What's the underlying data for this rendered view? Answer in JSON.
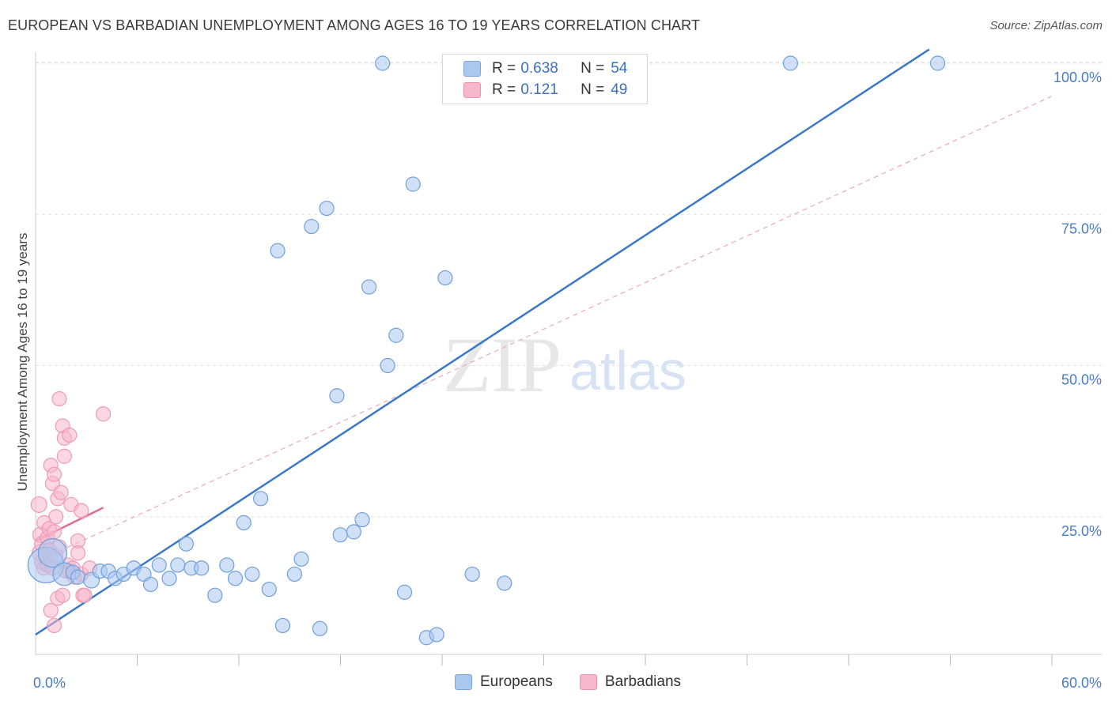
{
  "title": "EUROPEAN VS BARBADIAN UNEMPLOYMENT AMONG AGES 16 TO 19 YEARS CORRELATION CHART",
  "source": "Source: ZipAtlas.com",
  "watermark": {
    "zip": "ZIP",
    "atlas": "atlas"
  },
  "legend": {
    "europeans": {
      "r_label": "R =",
      "r_value": "0.638",
      "n_label": "N =",
      "n_value": "54",
      "color": "#a9c8f0"
    },
    "barbadians": {
      "r_label": "R =",
      "r_value": "0.121",
      "n_label": "N =",
      "n_value": "49",
      "color": "#f6b6cb"
    }
  },
  "bottom_legend": {
    "europeans": "Europeans",
    "barbadians": "Barbadians"
  },
  "chart_data": {
    "type": "scatter",
    "title": "EUROPEAN VS BARBADIAN UNEMPLOYMENT AMONG AGES 16 TO 19 YEARS CORRELATION CHART",
    "xlabel": "",
    "ylabel": "Unemployment Among Ages 16 to 19 years",
    "xlim": [
      0,
      60
    ],
    "ylim": [
      0,
      104
    ],
    "x_tick_labels": [
      "0.0%",
      "60.0%"
    ],
    "y_ticks": [
      25,
      50,
      75,
      100
    ],
    "y_tick_labels": [
      "25.0%",
      "50.0%",
      "75.0%",
      "100.0%"
    ],
    "grid": true,
    "series": [
      {
        "name": "Europeans",
        "color": "#a9c8f0",
        "stroke": "#6f9fdc",
        "trend": {
          "x": [
            0,
            52.8
          ],
          "y": [
            5.5,
            102.3
          ],
          "color": "#3a78c9"
        },
        "points": [
          {
            "x": 0.6,
            "y": 17.0,
            "s": 2.5
          },
          {
            "x": 1.0,
            "y": 19.0,
            "s": 2.0
          },
          {
            "x": 1.7,
            "y": 15.5,
            "s": 1.6
          },
          {
            "x": 2.2,
            "y": 15.8,
            "s": 1.0
          },
          {
            "x": 2.5,
            "y": 15.0,
            "s": 1.0
          },
          {
            "x": 3.3,
            "y": 14.5,
            "s": 1.1
          },
          {
            "x": 3.8,
            "y": 16.0,
            "s": 1.0
          },
          {
            "x": 4.3,
            "y": 16.0,
            "s": 1.0
          },
          {
            "x": 4.7,
            "y": 14.8,
            "s": 1.0
          },
          {
            "x": 5.2,
            "y": 15.5,
            "s": 1.0
          },
          {
            "x": 5.8,
            "y": 16.5,
            "s": 1.0
          },
          {
            "x": 6.4,
            "y": 15.5,
            "s": 1.0
          },
          {
            "x": 6.8,
            "y": 13.8,
            "s": 1.0
          },
          {
            "x": 7.3,
            "y": 17.0,
            "s": 1.0
          },
          {
            "x": 7.9,
            "y": 14.8,
            "s": 1.0
          },
          {
            "x": 8.4,
            "y": 17.0,
            "s": 1.0
          },
          {
            "x": 8.9,
            "y": 20.5,
            "s": 1.0
          },
          {
            "x": 9.2,
            "y": 16.5,
            "s": 1.0
          },
          {
            "x": 9.8,
            "y": 16.5,
            "s": 1.0
          },
          {
            "x": 10.6,
            "y": 12.0,
            "s": 1.0
          },
          {
            "x": 11.3,
            "y": 17.0,
            "s": 1.0
          },
          {
            "x": 11.8,
            "y": 14.8,
            "s": 1.0
          },
          {
            "x": 12.3,
            "y": 24.0,
            "s": 1.0
          },
          {
            "x": 12.8,
            "y": 15.5,
            "s": 1.0
          },
          {
            "x": 13.3,
            "y": 28.0,
            "s": 1.0
          },
          {
            "x": 13.8,
            "y": 13.0,
            "s": 1.0
          },
          {
            "x": 14.3,
            "y": 69.0,
            "s": 1.0
          },
          {
            "x": 14.6,
            "y": 7.0,
            "s": 1.0
          },
          {
            "x": 15.3,
            "y": 15.5,
            "s": 1.0
          },
          {
            "x": 15.7,
            "y": 18.0,
            "s": 1.0
          },
          {
            "x": 16.3,
            "y": 73.0,
            "s": 1.0
          },
          {
            "x": 16.8,
            "y": 6.5,
            "s": 1.0
          },
          {
            "x": 17.2,
            "y": 76.0,
            "s": 1.0
          },
          {
            "x": 17.8,
            "y": 45.0,
            "s": 1.0
          },
          {
            "x": 18.0,
            "y": 22.0,
            "s": 1.0
          },
          {
            "x": 18.8,
            "y": 22.5,
            "s": 1.0
          },
          {
            "x": 19.3,
            "y": 24.5,
            "s": 1.0
          },
          {
            "x": 19.7,
            "y": 63.0,
            "s": 1.0
          },
          {
            "x": 20.5,
            "y": 100.0,
            "s": 1.0
          },
          {
            "x": 20.8,
            "y": 50.0,
            "s": 1.0
          },
          {
            "x": 21.3,
            "y": 55.0,
            "s": 1.0
          },
          {
            "x": 21.8,
            "y": 12.5,
            "s": 1.0
          },
          {
            "x": 22.3,
            "y": 80.0,
            "s": 1.0
          },
          {
            "x": 23.1,
            "y": 5.0,
            "s": 1.0
          },
          {
            "x": 23.7,
            "y": 5.5,
            "s": 1.0
          },
          {
            "x": 24.2,
            "y": 64.5,
            "s": 1.0
          },
          {
            "x": 25.8,
            "y": 15.5,
            "s": 1.0
          },
          {
            "x": 27.7,
            "y": 14.0,
            "s": 1.0
          },
          {
            "x": 44.6,
            "y": 100.0,
            "s": 1.0
          },
          {
            "x": 53.3,
            "y": 100.0,
            "s": 1.0
          }
        ]
      },
      {
        "name": "Barbadians",
        "color": "#f6b6cb",
        "stroke": "#ef9ab7",
        "trend": {
          "x": [
            0,
            4.0
          ],
          "y": [
            21.0,
            26.5
          ],
          "color": "#e06d95"
        },
        "trend_extension": {
          "x": [
            0,
            60
          ],
          "y": [
            17.5,
            94.5
          ],
          "dashed": true,
          "color": "#eba8c0"
        },
        "points": [
          {
            "x": 0.2,
            "y": 27.0,
            "s": 1.1
          },
          {
            "x": 0.3,
            "y": 22.0,
            "s": 1.1
          },
          {
            "x": 0.3,
            "y": 19.0,
            "s": 1.2
          },
          {
            "x": 0.4,
            "y": 17.5,
            "s": 1.1
          },
          {
            "x": 0.4,
            "y": 20.5,
            "s": 1.1
          },
          {
            "x": 0.5,
            "y": 16.5,
            "s": 1.0
          },
          {
            "x": 0.5,
            "y": 24.0,
            "s": 1.0
          },
          {
            "x": 0.6,
            "y": 18.5,
            "s": 1.0
          },
          {
            "x": 0.7,
            "y": 21.5,
            "s": 1.0
          },
          {
            "x": 0.7,
            "y": 17.0,
            "s": 1.0
          },
          {
            "x": 0.8,
            "y": 19.5,
            "s": 1.0
          },
          {
            "x": 0.8,
            "y": 23.0,
            "s": 1.0
          },
          {
            "x": 0.9,
            "y": 18.0,
            "s": 1.0
          },
          {
            "x": 0.9,
            "y": 33.5,
            "s": 1.0
          },
          {
            "x": 0.9,
            "y": 9.5,
            "s": 1.0
          },
          {
            "x": 1.0,
            "y": 30.5,
            "s": 1.0
          },
          {
            "x": 1.0,
            "y": 16.5,
            "s": 1.0
          },
          {
            "x": 1.1,
            "y": 22.5,
            "s": 1.0
          },
          {
            "x": 1.1,
            "y": 32.0,
            "s": 1.0
          },
          {
            "x": 1.1,
            "y": 7.0,
            "s": 1.0
          },
          {
            "x": 1.2,
            "y": 25.0,
            "s": 1.0
          },
          {
            "x": 1.2,
            "y": 18.5,
            "s": 1.0
          },
          {
            "x": 1.3,
            "y": 28.0,
            "s": 1.0
          },
          {
            "x": 1.3,
            "y": 11.5,
            "s": 1.0
          },
          {
            "x": 1.4,
            "y": 20.0,
            "s": 1.0
          },
          {
            "x": 1.4,
            "y": 44.5,
            "s": 1.0
          },
          {
            "x": 1.5,
            "y": 29.0,
            "s": 1.0
          },
          {
            "x": 1.6,
            "y": 40.0,
            "s": 1.0
          },
          {
            "x": 1.6,
            "y": 12.0,
            "s": 1.0
          },
          {
            "x": 1.7,
            "y": 35.0,
            "s": 1.0
          },
          {
            "x": 1.7,
            "y": 38.0,
            "s": 1.0
          },
          {
            "x": 1.8,
            "y": 16.0,
            "s": 1.0
          },
          {
            "x": 1.9,
            "y": 17.0,
            "s": 1.0
          },
          {
            "x": 2.0,
            "y": 16.0,
            "s": 1.0
          },
          {
            "x": 2.0,
            "y": 38.5,
            "s": 1.0
          },
          {
            "x": 2.1,
            "y": 27.0,
            "s": 1.0
          },
          {
            "x": 2.2,
            "y": 16.5,
            "s": 1.0
          },
          {
            "x": 2.3,
            "y": 15.0,
            "s": 1.0
          },
          {
            "x": 2.5,
            "y": 21.0,
            "s": 1.0
          },
          {
            "x": 2.5,
            "y": 19.0,
            "s": 1.0
          },
          {
            "x": 2.7,
            "y": 26.0,
            "s": 1.0
          },
          {
            "x": 2.7,
            "y": 15.5,
            "s": 1.0
          },
          {
            "x": 2.8,
            "y": 12.0,
            "s": 1.0
          },
          {
            "x": 2.9,
            "y": 12.0,
            "s": 1.0
          },
          {
            "x": 3.2,
            "y": 16.5,
            "s": 1.0
          },
          {
            "x": 4.0,
            "y": 42.0,
            "s": 1.0
          }
        ]
      }
    ]
  }
}
